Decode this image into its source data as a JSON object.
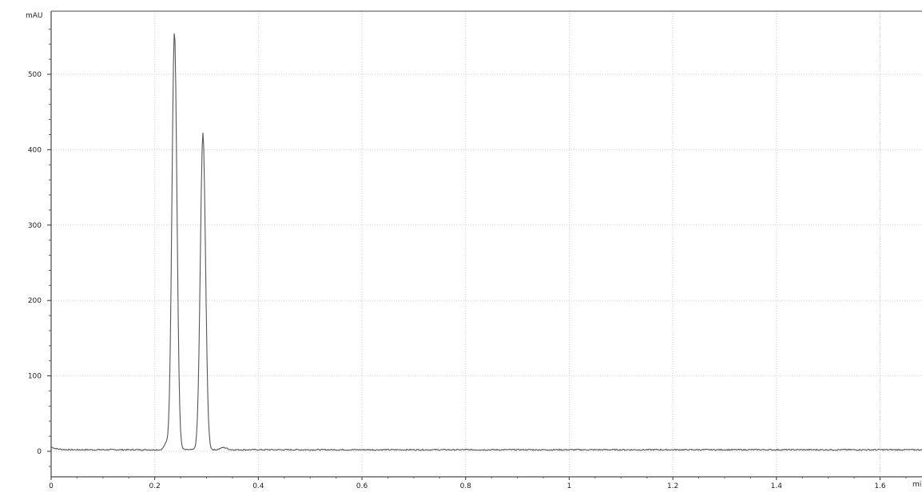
{
  "chart_data": {
    "type": "line",
    "ylabel": "mAU",
    "xlabel": "mi",
    "xlim": [
      0,
      1.7
    ],
    "ylim": [
      -30,
      580
    ],
    "x_ticks": [
      0,
      0.2,
      0.4,
      0.6,
      0.8,
      1.0,
      1.2,
      1.4,
      1.6
    ],
    "x_tick_labels": [
      "0",
      "0.2",
      "0.4",
      "0.6",
      "0.8",
      "1",
      "1.2",
      "1.4",
      "1.6"
    ],
    "y_ticks": [
      0,
      100,
      200,
      300,
      400,
      500
    ],
    "y_tick_labels": [
      "0",
      "100",
      "200",
      "300",
      "400",
      "500"
    ],
    "grid": true,
    "line_color": "#555555",
    "grid_color": "#cfcfcf",
    "series": [
      {
        "baseline": 2,
        "peaks": [
          {
            "x": 0.238,
            "height": 556,
            "width": 0.0048
          },
          {
            "x": 0.293,
            "height": 420,
            "width": 0.005
          },
          {
            "x": 0.222,
            "height": 8,
            "width": 0.004
          },
          {
            "x": 0.333,
            "height": 3,
            "width": 0.006
          }
        ]
      }
    ]
  }
}
